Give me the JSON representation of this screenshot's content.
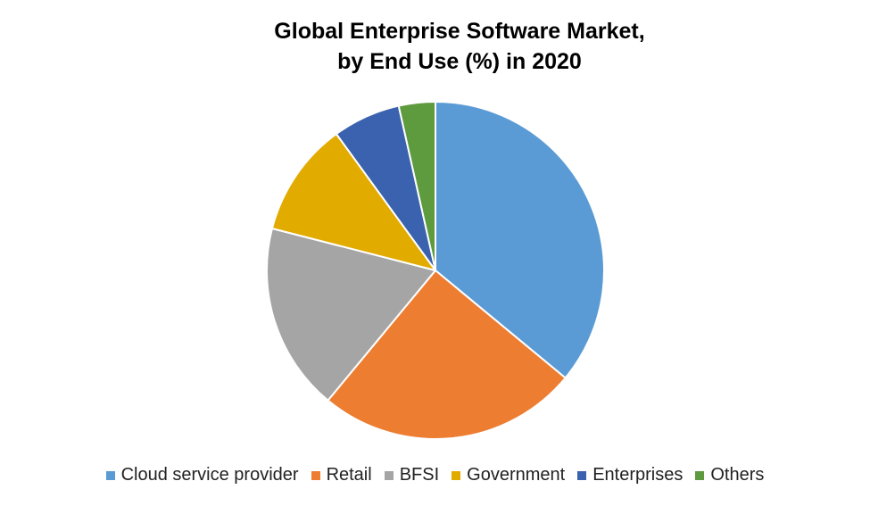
{
  "chart_data": {
    "type": "pie",
    "title": "Global Enterprise Software Market, by End Use (%) in 2020",
    "title_lines": [
      "Global Enterprise Software Market,",
      "by End Use (%) in 2020"
    ],
    "slices": [
      {
        "label": "Cloud service provider",
        "value": 36,
        "color": "#5B9BD5"
      },
      {
        "label": "Retail",
        "value": 25,
        "color": "#ED7D31"
      },
      {
        "label": "BFSI",
        "value": 18,
        "color": "#A5A5A5"
      },
      {
        "label": "Government",
        "value": 11,
        "color": "#E2AB00"
      },
      {
        "label": "Enterprises",
        "value": 6.5,
        "color": "#3A62AE"
      },
      {
        "label": "Others",
        "value": 3.5,
        "color": "#5E9A3E"
      }
    ],
    "legend_position": "bottom",
    "data_labels": false
  }
}
